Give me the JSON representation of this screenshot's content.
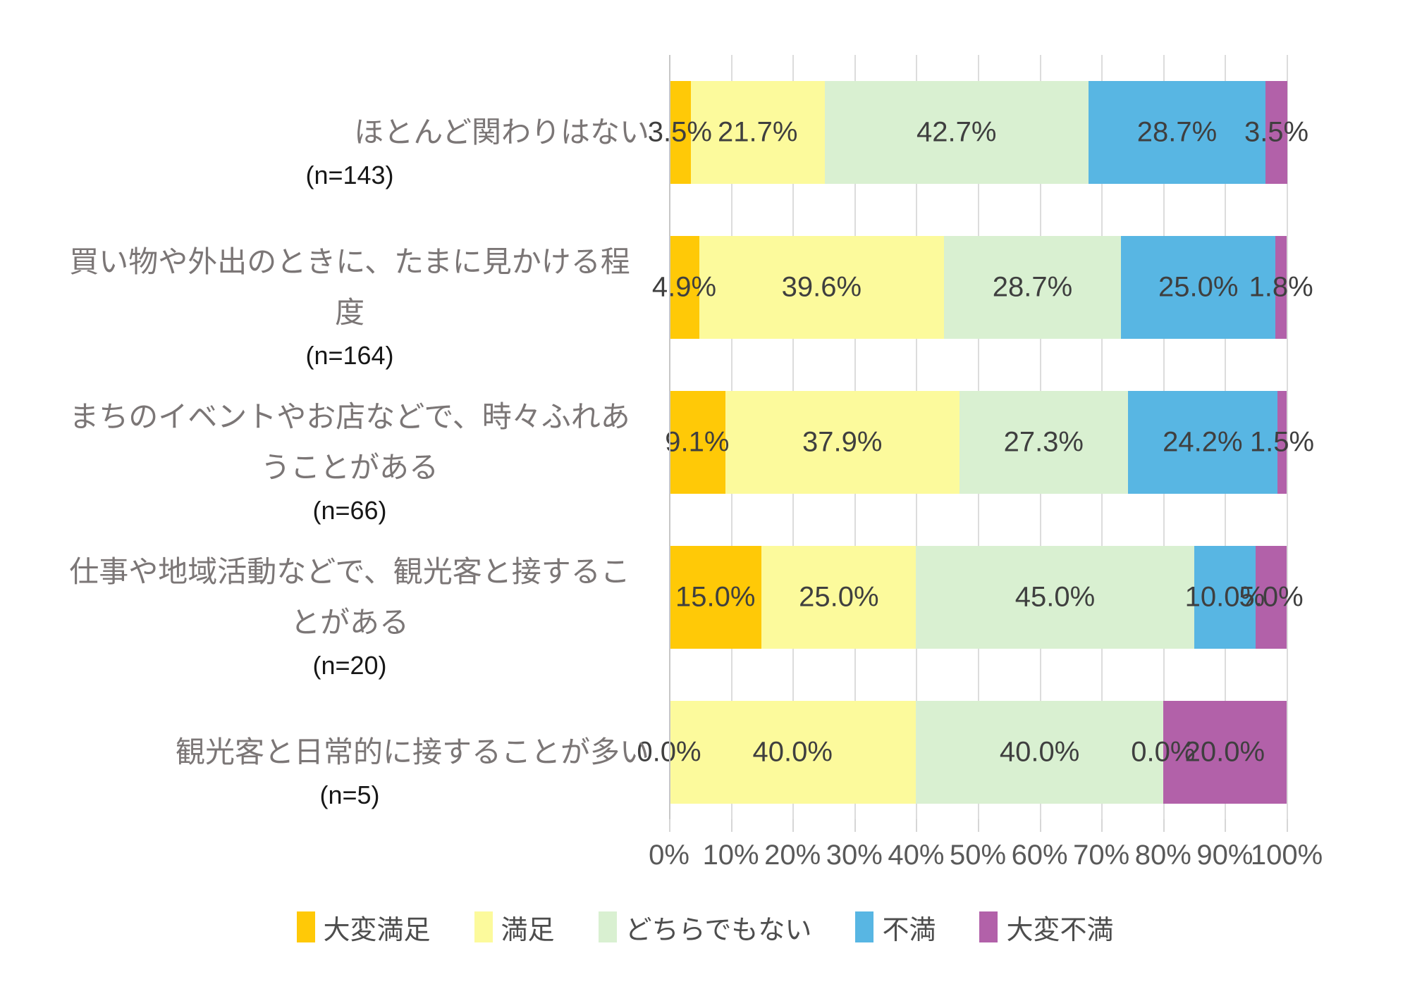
{
  "chart_data": {
    "type": "bar",
    "stacked": true,
    "orientation": "horizontal",
    "title": "",
    "xlabel": "",
    "ylabel": "",
    "xlim": [
      0,
      100
    ],
    "grid": "vertical",
    "legend_position": "bottom",
    "value_label_format": "percent_one_decimal",
    "categories": [
      {
        "label": "ほとんど関わりはない",
        "label_lines": [
          "ほとんど関わりはない"
        ],
        "n": "(n=143)"
      },
      {
        "label": "買い物や外出のときに、たまに見かける程度",
        "label_lines": [
          "買い物や外出のときに、たまに見かける程",
          "度"
        ],
        "n": "(n=164)"
      },
      {
        "label": "まちのイベントやお店などで、時々ふれあうことがある",
        "label_lines": [
          "まちのイベントやお店などで、時々ふれあ",
          "うことがある"
        ],
        "n": "(n=66)"
      },
      {
        "label": "仕事や地域活動などで、観光客と接することがある",
        "label_lines": [
          "仕事や地域活動などで、観光客と接するこ",
          "とがある"
        ],
        "n": "(n=20)"
      },
      {
        "label": "観光客と日常的に接することが多い",
        "label_lines": [
          "観光客と日常的に接することが多い"
        ],
        "n": "(n=5)"
      }
    ],
    "series": [
      {
        "name": "大変満足",
        "color": "#FFC907",
        "values": [
          3.5,
          4.9,
          9.1,
          15.0,
          0.0
        ]
      },
      {
        "name": "満足",
        "color": "#FCFA9C",
        "values": [
          21.7,
          39.6,
          37.9,
          25.0,
          40.0
        ]
      },
      {
        "name": "どちらでもない",
        "color": "#D9F0D1",
        "values": [
          42.7,
          28.7,
          27.3,
          45.0,
          40.0
        ]
      },
      {
        "name": "不満",
        "color": "#58B6E3",
        "values": [
          28.7,
          25.0,
          24.2,
          10.0,
          0.0
        ]
      },
      {
        "name": "大変不満",
        "color": "#B261A9",
        "values": [
          3.5,
          1.8,
          1.5,
          5.0,
          20.0
        ]
      }
    ],
    "x_ticks": [
      "0%",
      "10%",
      "20%",
      "30%",
      "40%",
      "50%",
      "60%",
      "70%",
      "80%",
      "90%",
      "100%"
    ]
  }
}
